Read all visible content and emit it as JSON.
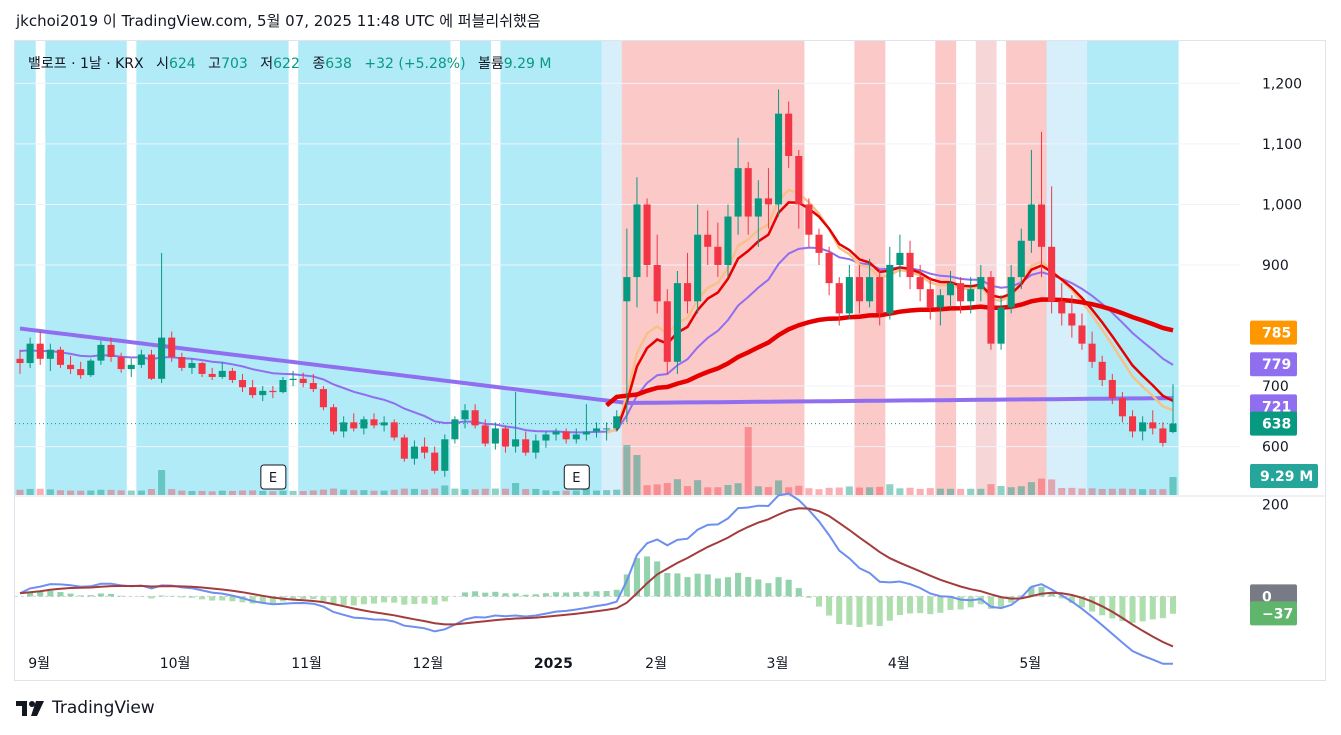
{
  "header": {
    "credit": "jkchoi2019 이 TradingView.com, 5월 07, 2025 11:48 UTC 에 퍼블리쉬했음"
  },
  "legend": {
    "symbol": "밸로프 · 1날 · KRX",
    "open_label": "시",
    "open": "624",
    "high_label": "고",
    "high": "703",
    "low_label": "저",
    "low": "622",
    "close_label": "종",
    "close": "638",
    "change": "+32 (+5.28%)",
    "volume_label": "볼륨",
    "volume": "9.29 M"
  },
  "footer": {
    "brand": "TradingView"
  },
  "colors": {
    "up": "#089981",
    "down": "#f23645",
    "ema_fast": "#e60000",
    "ema_slow": "#f7c28a",
    "ma_purple": "#8f6ff0",
    "macd": "#6d8ff0",
    "signal": "#a33d3d",
    "bg_blue": "#b2ebf8",
    "bg_pink": "#fcc9c9"
  },
  "price_badges": [
    {
      "value": "785",
      "color": "#ff9800"
    },
    {
      "value": "779",
      "color": "#8f6ff0"
    },
    {
      "value": "721",
      "color": "#8f6ff0"
    },
    {
      "value": "638",
      "color": "#089981"
    }
  ],
  "volume_badge": {
    "value": "9.29 M",
    "color": "#26a69a"
  },
  "macd_badges": [
    {
      "value": "0",
      "color": "#787b86"
    },
    {
      "value": "−37",
      "color": "#5fb56b"
    }
  ],
  "earnings_markers": [
    "E",
    "E"
  ],
  "chart_data": {
    "type": "candlestick",
    "x_axis_labels": [
      "9월",
      "10월",
      "11월",
      "12월",
      "2025",
      "2월",
      "3월",
      "4월",
      "5월"
    ],
    "price_axis_ticks": [
      1200,
      1100,
      1000,
      900,
      700,
      600
    ],
    "price_ylim": [
      520,
      1270
    ],
    "macd_axis_ticks": [
      200
    ],
    "macd_ylim": [
      -95,
      210
    ],
    "last_close": 638,
    "candles": [
      [
        745,
        760,
        720,
        738
      ],
      [
        738,
        780,
        730,
        770
      ],
      [
        770,
        790,
        735,
        745
      ],
      [
        745,
        770,
        725,
        760
      ],
      [
        760,
        765,
        730,
        735
      ],
      [
        735,
        750,
        720,
        728
      ],
      [
        728,
        740,
        712,
        718
      ],
      [
        718,
        745,
        715,
        742
      ],
      [
        742,
        775,
        735,
        768
      ],
      [
        768,
        780,
        740,
        748
      ],
      [
        748,
        755,
        722,
        728
      ],
      [
        728,
        745,
        715,
        735
      ],
      [
        735,
        760,
        730,
        752
      ],
      [
        752,
        760,
        710,
        712
      ],
      [
        712,
        920,
        705,
        780
      ],
      [
        780,
        790,
        740,
        748
      ],
      [
        748,
        755,
        725,
        730
      ],
      [
        730,
        745,
        720,
        738
      ],
      [
        738,
        740,
        715,
        720
      ],
      [
        720,
        730,
        710,
        715
      ],
      [
        715,
        740,
        712,
        725
      ],
      [
        725,
        730,
        705,
        710
      ],
      [
        710,
        720,
        690,
        698
      ],
      [
        698,
        710,
        680,
        685
      ],
      [
        685,
        700,
        675,
        692
      ],
      [
        692,
        700,
        680,
        690
      ],
      [
        690,
        715,
        688,
        710
      ],
      [
        710,
        725,
        700,
        712
      ],
      [
        712,
        722,
        698,
        705
      ],
      [
        705,
        720,
        690,
        695
      ],
      [
        695,
        700,
        660,
        665
      ],
      [
        665,
        670,
        620,
        625
      ],
      [
        625,
        650,
        615,
        640
      ],
      [
        640,
        655,
        625,
        630
      ],
      [
        630,
        650,
        620,
        645
      ],
      [
        645,
        655,
        630,
        635
      ],
      [
        635,
        650,
        625,
        640
      ],
      [
        640,
        645,
        610,
        615
      ],
      [
        615,
        620,
        575,
        580
      ],
      [
        580,
        610,
        570,
        600
      ],
      [
        600,
        615,
        580,
        590
      ],
      [
        590,
        600,
        555,
        560
      ],
      [
        560,
        620,
        550,
        612
      ],
      [
        612,
        650,
        605,
        645
      ],
      [
        645,
        670,
        630,
        660
      ],
      [
        660,
        670,
        630,
        635
      ],
      [
        635,
        645,
        600,
        605
      ],
      [
        605,
        640,
        595,
        630
      ],
      [
        630,
        635,
        590,
        600
      ],
      [
        600,
        690,
        590,
        612
      ],
      [
        612,
        625,
        585,
        590
      ],
      [
        590,
        620,
        580,
        610
      ],
      [
        610,
        625,
        598,
        620
      ],
      [
        620,
        630,
        610,
        625
      ],
      [
        625,
        630,
        605,
        612
      ],
      [
        612,
        630,
        605,
        620
      ],
      [
        620,
        670,
        610,
        625
      ],
      [
        625,
        640,
        615,
        630
      ],
      [
        630,
        640,
        610,
        630
      ],
      [
        630,
        660,
        625,
        650
      ],
      [
        840,
        960,
        640,
        880
      ],
      [
        880,
        1045,
        830,
        1000
      ],
      [
        1000,
        1010,
        880,
        900
      ],
      [
        900,
        950,
        820,
        840
      ],
      [
        840,
        860,
        720,
        740
      ],
      [
        740,
        890,
        720,
        870
      ],
      [
        870,
        920,
        820,
        840
      ],
      [
        840,
        1000,
        820,
        950
      ],
      [
        950,
        990,
        900,
        930
      ],
      [
        930,
        970,
        880,
        900
      ],
      [
        900,
        1000,
        880,
        980
      ],
      [
        980,
        1110,
        950,
        1060
      ],
      [
        1060,
        1070,
        950,
        980
      ],
      [
        980,
        1040,
        930,
        1010
      ],
      [
        1010,
        1060,
        960,
        1000
      ],
      [
        1000,
        1190,
        980,
        1150
      ],
      [
        1150,
        1170,
        1060,
        1080
      ],
      [
        1080,
        1090,
        960,
        1000
      ],
      [
        1000,
        1010,
        930,
        950
      ],
      [
        950,
        960,
        900,
        920
      ],
      [
        920,
        930,
        850,
        870
      ],
      [
        870,
        880,
        800,
        820
      ],
      [
        820,
        900,
        810,
        880
      ],
      [
        880,
        900,
        820,
        840
      ],
      [
        840,
        910,
        830,
        880
      ],
      [
        880,
        890,
        800,
        820
      ],
      [
        820,
        930,
        810,
        900
      ],
      [
        900,
        950,
        880,
        920
      ],
      [
        920,
        940,
        860,
        880
      ],
      [
        880,
        900,
        840,
        860
      ],
      [
        860,
        880,
        810,
        830
      ],
      [
        830,
        860,
        800,
        850
      ],
      [
        850,
        890,
        830,
        870
      ],
      [
        870,
        880,
        820,
        840
      ],
      [
        840,
        880,
        820,
        860
      ],
      [
        860,
        900,
        840,
        880
      ],
      [
        880,
        890,
        760,
        770
      ],
      [
        770,
        850,
        760,
        830
      ],
      [
        830,
        900,
        820,
        880
      ],
      [
        880,
        960,
        860,
        940
      ],
      [
        940,
        1090,
        920,
        1000
      ],
      [
        1000,
        1120,
        880,
        930
      ],
      [
        930,
        1030,
        820,
        840
      ],
      [
        840,
        870,
        800,
        820
      ],
      [
        820,
        850,
        780,
        800
      ],
      [
        800,
        820,
        760,
        770
      ],
      [
        770,
        790,
        730,
        740
      ],
      [
        740,
        750,
        700,
        710
      ],
      [
        710,
        720,
        670,
        680
      ],
      [
        680,
        690,
        640,
        650
      ],
      [
        650,
        660,
        615,
        625
      ],
      [
        625,
        650,
        610,
        640
      ],
      [
        640,
        660,
        620,
        630
      ],
      [
        630,
        640,
        600,
        606
      ],
      [
        624,
        703,
        622,
        638
      ]
    ]
  }
}
